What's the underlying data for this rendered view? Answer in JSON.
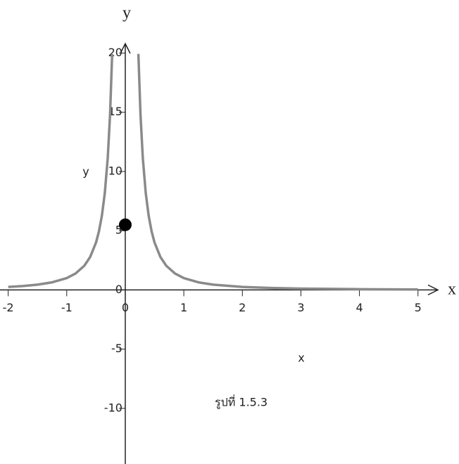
{
  "chart_data": {
    "type": "line",
    "y_arrow_label": "y",
    "x_arrow_label": "x",
    "y_label": "y",
    "x_label": "x",
    "caption": "รูปที่ 1.5.3",
    "x": [
      -2,
      -1.75,
      -1.5,
      -1.25,
      -1,
      -0.85,
      -0.7,
      -0.6,
      -0.5,
      -0.45,
      -0.4,
      -0.35,
      -0.3,
      -0.26,
      -0.224,
      0,
      0.224,
      0.26,
      0.3,
      0.35,
      0.4,
      0.45,
      0.5,
      0.6,
      0.7,
      0.85,
      1,
      1.25,
      1.5,
      2,
      2.5,
      3,
      4,
      5
    ],
    "series": [
      {
        "color": "#8a8a8a",
        "values": [
          0.25,
          0.327,
          0.444,
          0.64,
          1,
          1.384,
          2.041,
          2.778,
          4,
          4.938,
          6.25,
          8.163,
          11.111,
          14.793,
          19.929,
          null,
          19.929,
          14.793,
          11.111,
          8.163,
          6.25,
          4.938,
          4,
          2.778,
          2.041,
          1.384,
          1,
          0.64,
          0.444,
          0.25,
          0.16,
          0.111,
          0.0625,
          0.04
        ]
      }
    ],
    "points": {
      "x": [
        0
      ],
      "values": [
        5.5
      ],
      "color": "#000000"
    },
    "xlim": [
      -2.14,
      5.34
    ],
    "ylim": [
      -14.7,
      20.8
    ],
    "xticks": [
      -2,
      -1,
      0,
      1,
      2,
      3,
      4,
      5
    ],
    "yticks": [
      -10,
      -5,
      0,
      5,
      10,
      15,
      20
    ]
  }
}
